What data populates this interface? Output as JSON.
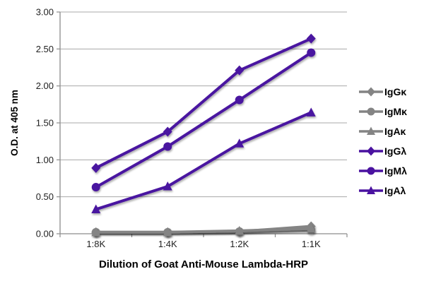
{
  "chart_data": {
    "type": "line",
    "title": "",
    "xlabel": "Dilution of Goat Anti-Mouse Lambda-HRP",
    "ylabel": "O.D. at 405 nm",
    "categories": [
      "1:8K",
      "1:4K",
      "1:2K",
      "1:1K"
    ],
    "ylim": [
      0.0,
      3.0
    ],
    "ytick_step": 0.5,
    "ytick_labels": [
      "0.00",
      "0.50",
      "1.00",
      "1.50",
      "2.00",
      "2.50",
      "3.00"
    ],
    "grid": true,
    "legend_position": "right",
    "colors": {
      "kappa_gray": "#848484",
      "lambda_purple": "#4a12a0",
      "gridline": "#a8a8a8",
      "axis": "#8c8c8c",
      "tick_text": "#1f1f1f"
    },
    "series": [
      {
        "name": "IgGκ",
        "marker": "diamond",
        "color": "#848484",
        "values": [
          0.02,
          0.02,
          0.03,
          0.1
        ]
      },
      {
        "name": "IgMκ",
        "marker": "circle",
        "color": "#848484",
        "values": [
          0.02,
          0.02,
          0.03,
          0.05
        ]
      },
      {
        "name": "IgAκ",
        "marker": "triangle",
        "color": "#848484",
        "values": [
          0.02,
          0.02,
          0.04,
          0.07
        ]
      },
      {
        "name": "IgGλ",
        "marker": "diamond",
        "color": "#4a12a0",
        "values": [
          0.89,
          1.38,
          2.21,
          2.64
        ]
      },
      {
        "name": "IgMλ",
        "marker": "circle",
        "color": "#4a12a0",
        "values": [
          0.63,
          1.18,
          1.81,
          2.45
        ]
      },
      {
        "name": "IgAλ",
        "marker": "triangle",
        "color": "#4a12a0",
        "values": [
          0.33,
          0.64,
          1.22,
          1.64
        ]
      }
    ]
  }
}
